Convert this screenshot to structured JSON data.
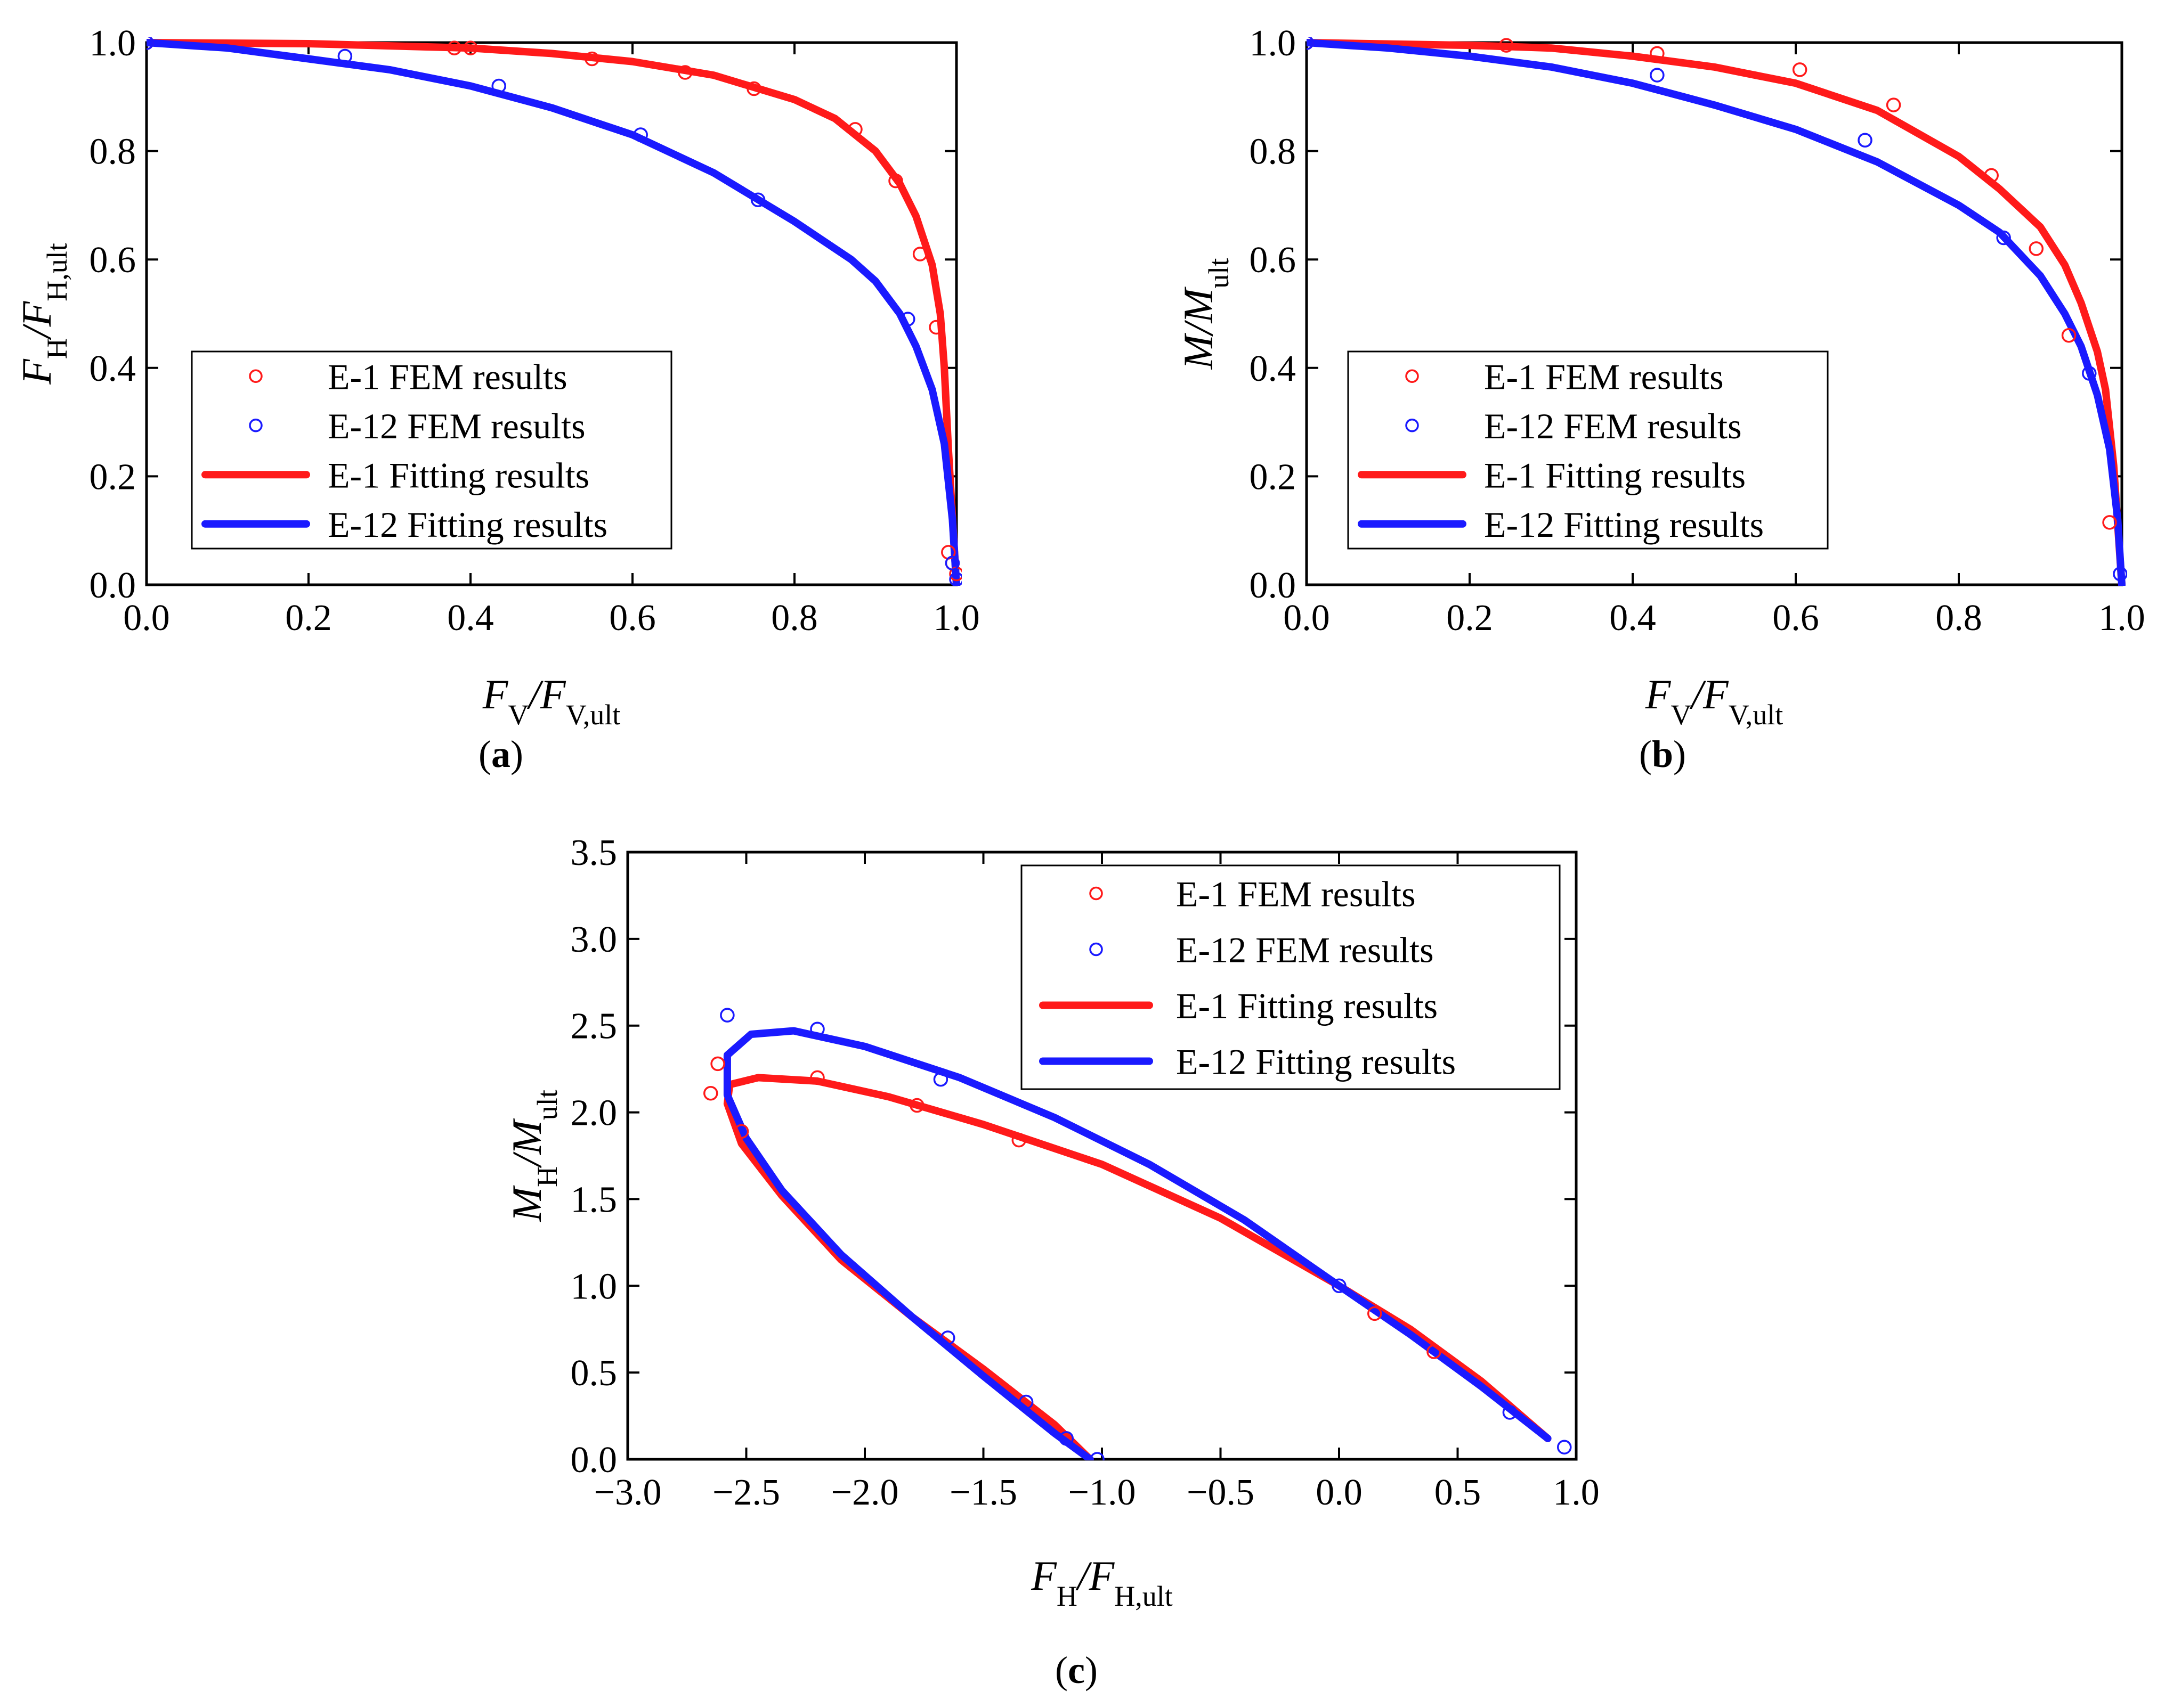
{
  "figure": {
    "panels": [
      {
        "id": "a",
        "panel_label": "a",
        "xlabel": {
          "base": "F",
          "sub": "V",
          "mid": "/F",
          "sub2": "V,ult"
        },
        "ylabel": {
          "base": "F",
          "sub": "H",
          "mid": "/F",
          "sub2": "H,ult"
        },
        "legend": [
          "E-1 FEM results",
          "E-12 FEM results",
          "E-1 Fitting results",
          "E-12 Fitting results"
        ]
      },
      {
        "id": "b",
        "panel_label": "b",
        "xlabel": {
          "base": "F",
          "sub": "V",
          "mid": "/F",
          "sub2": "V,ult"
        },
        "ylabel": {
          "base": "M",
          "sub": "",
          "mid": "/M",
          "sub2": "ult"
        },
        "legend": [
          "E-1 FEM results",
          "E-12 FEM results",
          "E-1 Fitting results",
          "E-12 Fitting results"
        ]
      },
      {
        "id": "c",
        "panel_label": "c",
        "xlabel": {
          "base": "F",
          "sub": "H",
          "mid": "/F",
          "sub2": "H,ult"
        },
        "ylabel": {
          "base": "M",
          "sub": "H",
          "mid": "/M",
          "sub2": "ult"
        },
        "legend": [
          "E-1 FEM results",
          "E-12 FEM results",
          "E-1 Fitting results",
          "E-12 Fitting results"
        ]
      }
    ]
  },
  "colors": {
    "e1": "#ff1a1a",
    "e12": "#1a1aff",
    "axis": "#000000"
  },
  "chart_data": [
    {
      "id": "a",
      "type": "scatter",
      "xlim": [
        0.0,
        1.0
      ],
      "ylim": [
        0.0,
        1.0
      ],
      "xticks": [
        "0.0",
        "0.2",
        "0.4",
        "0.6",
        "0.8",
        "1.0"
      ],
      "yticks": [
        "0.0",
        "0.2",
        "0.4",
        "0.6",
        "0.8",
        "1.0"
      ],
      "grid": false,
      "legend_position": "lower-left",
      "series": [
        {
          "name": "E-1 FEM results",
          "style": "markers",
          "color": "#ff1a1a",
          "x": [
            0.0,
            0.38,
            0.4,
            0.55,
            0.665,
            0.75,
            0.875,
            0.925,
            0.955,
            0.975,
            0.99,
            0.995,
            1.0
          ],
          "y": [
            1.0,
            0.99,
            0.99,
            0.97,
            0.945,
            0.915,
            0.84,
            0.745,
            0.61,
            0.475,
            0.06,
            0.04,
            0.02
          ]
        },
        {
          "name": "E-12 FEM results",
          "style": "markers",
          "color": "#1a1aff",
          "x": [
            0.0,
            0.245,
            0.435,
            0.61,
            0.755,
            0.94,
            0.995,
            1.0
          ],
          "y": [
            1.0,
            0.975,
            0.92,
            0.83,
            0.71,
            0.49,
            0.04,
            0.01
          ]
        },
        {
          "name": "E-1 Fitting results",
          "style": "line",
          "color": "#ff1a1a",
          "x": [
            0.0,
            0.2,
            0.4,
            0.5,
            0.6,
            0.7,
            0.8,
            0.85,
            0.9,
            0.93,
            0.95,
            0.97,
            0.98,
            0.985,
            0.99,
            1.0
          ],
          "y": [
            1.0,
            0.998,
            0.99,
            0.98,
            0.965,
            0.94,
            0.895,
            0.86,
            0.8,
            0.74,
            0.68,
            0.59,
            0.5,
            0.4,
            0.25,
            0.0
          ]
        },
        {
          "name": "E-12 Fitting results",
          "style": "line",
          "color": "#1a1aff",
          "x": [
            0.0,
            0.1,
            0.2,
            0.3,
            0.4,
            0.5,
            0.6,
            0.7,
            0.8,
            0.87,
            0.9,
            0.93,
            0.95,
            0.97,
            0.985,
            0.995,
            1.0
          ],
          "y": [
            1.0,
            0.99,
            0.97,
            0.95,
            0.92,
            0.88,
            0.83,
            0.76,
            0.67,
            0.6,
            0.56,
            0.5,
            0.44,
            0.36,
            0.26,
            0.12,
            0.0
          ]
        }
      ]
    },
    {
      "id": "b",
      "type": "scatter",
      "xlim": [
        0.0,
        1.0
      ],
      "ylim": [
        0.0,
        1.0
      ],
      "xticks": [
        "0.0",
        "0.2",
        "0.4",
        "0.6",
        "0.8",
        "1.0"
      ],
      "yticks": [
        "0.0",
        "0.2",
        "0.4",
        "0.6",
        "0.8",
        "1.0"
      ],
      "grid": false,
      "legend_position": "lower-left",
      "series": [
        {
          "name": "E-1 FEM results",
          "style": "markers",
          "color": "#ff1a1a",
          "x": [
            0.0,
            0.245,
            0.43,
            0.605,
            0.72,
            0.84,
            0.895,
            0.935,
            0.985
          ],
          "y": [
            1.0,
            0.995,
            0.98,
            0.95,
            0.885,
            0.755,
            0.62,
            0.46,
            0.115
          ]
        },
        {
          "name": "E-12 FEM results",
          "style": "markers",
          "color": "#1a1aff",
          "x": [
            0.0,
            0.43,
            0.685,
            0.855,
            0.96,
            0.998
          ],
          "y": [
            1.0,
            0.94,
            0.82,
            0.64,
            0.39,
            0.02
          ]
        },
        {
          "name": "E-1 Fitting results",
          "style": "line",
          "color": "#ff1a1a",
          "x": [
            0.0,
            0.2,
            0.3,
            0.4,
            0.5,
            0.6,
            0.7,
            0.8,
            0.85,
            0.9,
            0.93,
            0.95,
            0.97,
            0.98,
            0.99,
            1.0
          ],
          "y": [
            1.0,
            0.995,
            0.99,
            0.975,
            0.955,
            0.925,
            0.875,
            0.79,
            0.73,
            0.66,
            0.59,
            0.52,
            0.43,
            0.36,
            0.22,
            0.0
          ]
        },
        {
          "name": "E-12 Fitting results",
          "style": "line",
          "color": "#1a1aff",
          "x": [
            0.0,
            0.1,
            0.2,
            0.3,
            0.4,
            0.5,
            0.6,
            0.7,
            0.8,
            0.85,
            0.9,
            0.93,
            0.95,
            0.97,
            0.985,
            0.995,
            1.0
          ],
          "y": [
            1.0,
            0.99,
            0.975,
            0.955,
            0.925,
            0.885,
            0.84,
            0.78,
            0.7,
            0.65,
            0.57,
            0.5,
            0.44,
            0.35,
            0.25,
            0.12,
            0.0
          ]
        }
      ]
    },
    {
      "id": "c",
      "type": "scatter",
      "xlim": [
        -3.0,
        1.0
      ],
      "ylim": [
        0.0,
        3.5
      ],
      "xticks": [
        "−3.0",
        "−2.5",
        "−2.0",
        "−1.5",
        "−1.0",
        "−0.5",
        "0.0",
        "0.5",
        "1.0"
      ],
      "yticks": [
        "0.0",
        "0.5",
        "1.0",
        "1.5",
        "2.0",
        "2.5",
        "3.0",
        "3.5"
      ],
      "grid": false,
      "legend_position": "top-right",
      "series": [
        {
          "name": "E-1 FEM results",
          "style": "markers",
          "color": "#ff1a1a",
          "x": [
            -2.65,
            -2.62,
            -2.52,
            -2.2,
            -1.78,
            -1.35,
            0.15,
            0.4
          ],
          "y": [
            2.11,
            2.28,
            1.89,
            2.2,
            2.04,
            1.84,
            0.84,
            0.62
          ]
        },
        {
          "name": "E-12 FEM results",
          "style": "markers",
          "color": "#1a1aff",
          "x": [
            -2.58,
            -2.2,
            -1.68,
            -1.65,
            -1.32,
            -1.15,
            -1.02,
            0.0,
            0.72,
            0.95
          ],
          "y": [
            2.56,
            2.48,
            2.19,
            0.7,
            0.33,
            0.12,
            0.0,
            1.0,
            0.27,
            0.07
          ]
        },
        {
          "name": "E-1 Fitting results",
          "style": "line",
          "color": "#ff1a1a",
          "x": [
            -1.05,
            -1.2,
            -1.5,
            -1.8,
            -2.1,
            -2.35,
            -2.52,
            -2.58,
            -2.57,
            -2.45,
            -2.2,
            -1.9,
            -1.5,
            -1.0,
            -0.5,
            0.0,
            0.3,
            0.6,
            0.88
          ],
          "y": [
            0.0,
            0.2,
            0.52,
            0.82,
            1.15,
            1.52,
            1.82,
            2.05,
            2.16,
            2.2,
            2.18,
            2.09,
            1.93,
            1.7,
            1.39,
            1.0,
            0.75,
            0.45,
            0.12
          ]
        },
        {
          "name": "E-12 Fitting results",
          "style": "line",
          "color": "#1a1aff",
          "x": [
            -1.05,
            -1.2,
            -1.5,
            -1.8,
            -2.1,
            -2.35,
            -2.5,
            -2.58,
            -2.58,
            -2.48,
            -2.3,
            -2.0,
            -1.6,
            -1.2,
            -0.8,
            -0.4,
            0.0,
            0.3,
            0.6,
            0.88
          ],
          "y": [
            0.0,
            0.15,
            0.48,
            0.82,
            1.18,
            1.55,
            1.85,
            2.1,
            2.33,
            2.45,
            2.47,
            2.38,
            2.2,
            1.97,
            1.7,
            1.38,
            1.0,
            0.72,
            0.42,
            0.12
          ]
        }
      ]
    }
  ]
}
